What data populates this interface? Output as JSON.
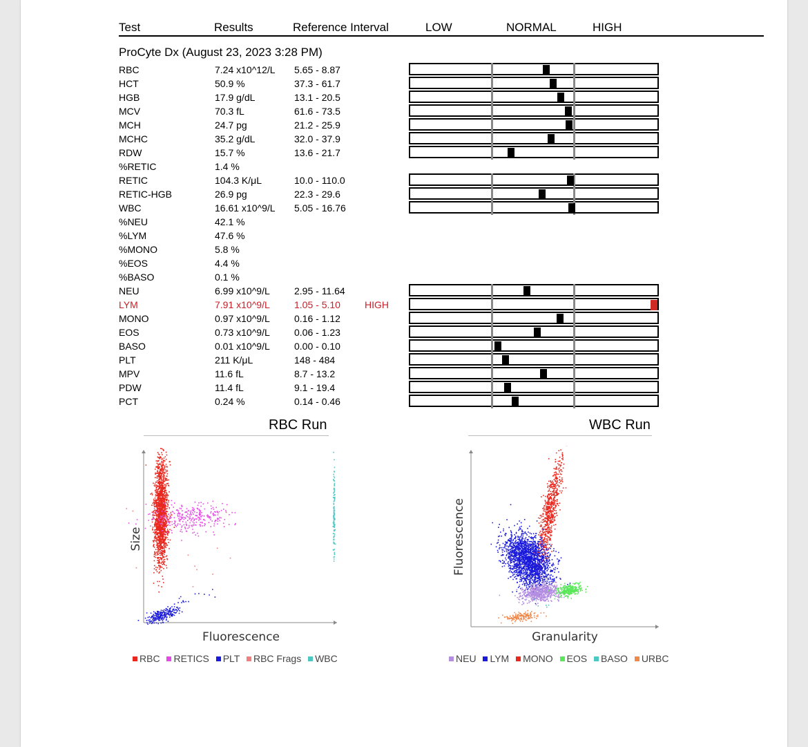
{
  "header": {
    "test": "Test",
    "results": "Results",
    "reference_interval": "Reference Interval",
    "low": "LOW",
    "normal": "NORMAL",
    "high": "HIGH"
  },
  "section": {
    "title": "ProCyte Dx (August 23, 2023 3:28 PM)"
  },
  "results": [
    {
      "test": "RBC",
      "result": "7.24 x10^12/L",
      "ref": "5.65 - 8.87",
      "flag": "",
      "gauge": {
        "group": "rbc",
        "pos": 0.67
      }
    },
    {
      "test": "HCT",
      "result": "50.9 %",
      "ref": "37.3 - 61.7",
      "flag": "",
      "gauge": {
        "group": "rbc",
        "pos": 0.76
      }
    },
    {
      "test": "HGB",
      "result": "17.9 g/dL",
      "ref": "13.1 - 20.5",
      "flag": "",
      "gauge": {
        "group": "rbc",
        "pos": 0.85
      }
    },
    {
      "test": "MCV",
      "result": "70.3 fL",
      "ref": "61.6 - 73.5",
      "flag": "",
      "gauge": {
        "group": "rbc",
        "pos": 0.94
      }
    },
    {
      "test": "MCH",
      "result": "24.7 pg",
      "ref": "21.2 - 25.9",
      "flag": "",
      "gauge": {
        "group": "rbc",
        "pos": 0.95
      }
    },
    {
      "test": "MCHC",
      "result": "35.2 g/dL",
      "ref": "32.0 - 37.9",
      "flag": "",
      "gauge": {
        "group": "rbc",
        "pos": 0.73
      }
    },
    {
      "test": "RDW",
      "result": "15.7 %",
      "ref": "13.6 - 21.7",
      "flag": "",
      "gauge": {
        "group": "rbc",
        "pos": 0.24
      }
    },
    {
      "test": "%RETIC",
      "result": "1.4 %",
      "ref": "",
      "flag": "",
      "gauge": null
    },
    {
      "test": "RETIC",
      "result": "104.3 K/μL",
      "ref": "10.0 - 110.0",
      "flag": "",
      "gauge": {
        "group": "retic",
        "pos": 0.97
      }
    },
    {
      "test": "RETIC-HGB",
      "result": "26.9 pg",
      "ref": "22.3 - 29.6",
      "flag": "",
      "gauge": {
        "group": "retic",
        "pos": 0.62
      }
    },
    {
      "test": "WBC",
      "result": "16.61 x10^9/L",
      "ref": "5.05 - 16.76",
      "flag": "",
      "gauge": {
        "group": "retic",
        "pos": 0.98
      }
    },
    {
      "test": "%NEU",
      "result": "42.1 %",
      "ref": "",
      "flag": "",
      "gauge": null
    },
    {
      "test": "%LYM",
      "result": "47.6 %",
      "ref": "",
      "flag": "",
      "gauge": null
    },
    {
      "test": "%MONO",
      "result": "5.8 %",
      "ref": "",
      "flag": "",
      "gauge": null
    },
    {
      "test": "%EOS",
      "result": "4.4 %",
      "ref": "",
      "flag": "",
      "gauge": null
    },
    {
      "test": "%BASO",
      "result": "0.1 %",
      "ref": "",
      "flag": "",
      "gauge": null
    },
    {
      "test": "NEU",
      "result": "6.99 x10^9/L",
      "ref": "2.95 - 11.64",
      "flag": "",
      "gauge": {
        "group": "wbc",
        "pos": 0.44
      }
    },
    {
      "test": "LYM",
      "result": "7.91 x10^9/L",
      "ref": "1.05 - 5.10",
      "flag": "HIGH",
      "gauge": {
        "group": "wbc",
        "pos": 1.95
      }
    },
    {
      "test": "MONO",
      "result": "0.97 x10^9/L",
      "ref": "0.16 - 1.12",
      "flag": "",
      "gauge": {
        "group": "wbc",
        "pos": 0.84
      }
    },
    {
      "test": "EOS",
      "result": "0.73 x10^9/L",
      "ref": "0.06 - 1.23",
      "flag": "",
      "gauge": {
        "group": "wbc",
        "pos": 0.56
      }
    },
    {
      "test": "BASO",
      "result": "0.01 x10^9/L",
      "ref": "0.00 - 0.10",
      "flag": "",
      "gauge": {
        "group": "wbc",
        "pos": 0.08
      }
    },
    {
      "test": "PLT",
      "result": "211 K/μL",
      "ref": "148 - 484",
      "flag": "",
      "gauge": {
        "group": "wbc",
        "pos": 0.18
      }
    },
    {
      "test": "MPV",
      "result": "11.6 fL",
      "ref": "8.7 - 13.2",
      "flag": "",
      "gauge": {
        "group": "wbc",
        "pos": 0.64
      }
    },
    {
      "test": "PDW",
      "result": "11.4 fL",
      "ref": "9.1 - 19.4",
      "flag": "",
      "gauge": {
        "group": "wbc",
        "pos": 0.2
      }
    },
    {
      "test": "PCT",
      "result": "0.24 %",
      "ref": "0.14 - 0.46",
      "flag": "",
      "gauge": {
        "group": "wbc",
        "pos": 0.29
      }
    }
  ],
  "plots": {
    "rbc": {
      "title": "RBC Run",
      "xlabel": "Fluorescence",
      "ylabel": "Size",
      "legend": [
        {
          "label": "RBC",
          "color": "#e8281e"
        },
        {
          "label": "RETICS",
          "color": "#e44be4"
        },
        {
          "label": "PLT",
          "color": "#1a1adc"
        },
        {
          "label": "RBC Frags",
          "color": "#f08080"
        },
        {
          "label": "WBC",
          "color": "#4cc8c4"
        }
      ]
    },
    "wbc": {
      "title": "WBC Run",
      "xlabel": "Granularity",
      "ylabel": "Fluorescence",
      "legend": [
        {
          "label": "NEU",
          "color": "#b48ee0"
        },
        {
          "label": "LYM",
          "color": "#1a1adc"
        },
        {
          "label": "MONO",
          "color": "#e8281e"
        },
        {
          "label": "EOS",
          "color": "#5ae85a"
        },
        {
          "label": "BASO",
          "color": "#4cc8c4"
        },
        {
          "label": "URBC",
          "color": "#f0884a"
        }
      ]
    }
  }
}
